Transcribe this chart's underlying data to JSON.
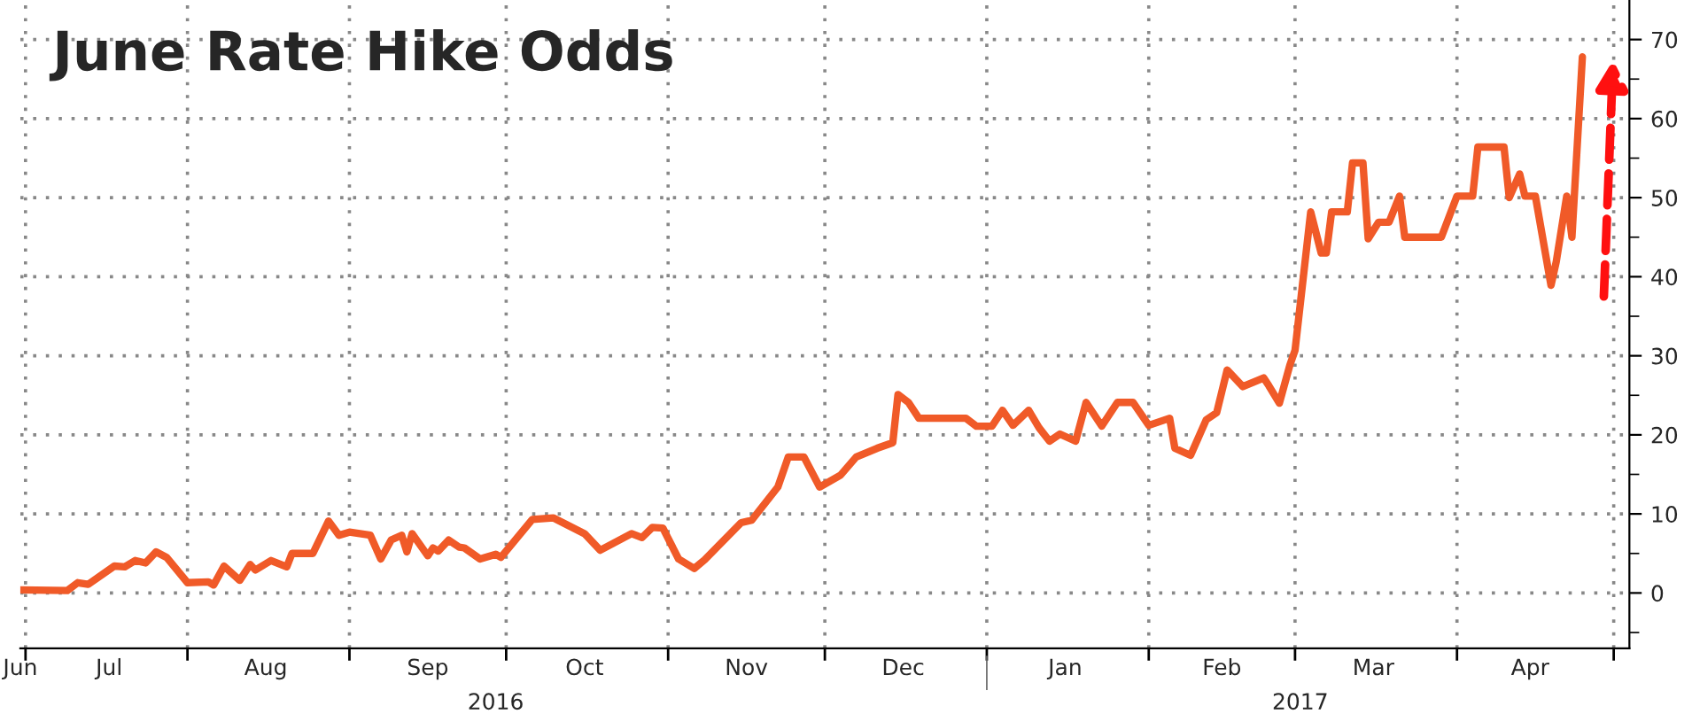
{
  "chart_data": {
    "type": "line",
    "title": "June Rate Hike Odds",
    "x": [
      "2016-06-30",
      "2016-07-09",
      "2016-07-11",
      "2016-07-13",
      "2016-07-18",
      "2016-07-20",
      "2016-07-22",
      "2016-07-24",
      "2016-07-26",
      "2016-07-28",
      "2016-08-01",
      "2016-08-05",
      "2016-08-06",
      "2016-08-08",
      "2016-08-11",
      "2016-08-13",
      "2016-08-14",
      "2016-08-17",
      "2016-08-20",
      "2016-08-21",
      "2016-08-25",
      "2016-08-28",
      "2016-08-30",
      "2016-09-01",
      "2016-09-05",
      "2016-09-07",
      "2016-09-09",
      "2016-09-11",
      "2016-09-12",
      "2016-09-13",
      "2016-09-16",
      "2016-09-17",
      "2016-09-18",
      "2016-09-20",
      "2016-09-22",
      "2016-09-23",
      "2016-09-26",
      "2016-09-29",
      "2016-09-30",
      "2016-10-06",
      "2016-10-10",
      "2016-10-16",
      "2016-10-19",
      "2016-10-25",
      "2016-10-27",
      "2016-10-29",
      "2016-10-31",
      "2016-11-03",
      "2016-11-06",
      "2016-11-08",
      "2016-11-15",
      "2016-11-17",
      "2016-11-22",
      "2016-11-24",
      "2016-11-27",
      "2016-11-30",
      "2016-12-04",
      "2016-12-07",
      "2016-12-11",
      "2016-12-14",
      "2016-12-15",
      "2016-12-17",
      "2016-12-19",
      "2016-12-28",
      "2016-12-30",
      "2017-01-02",
      "2017-01-04",
      "2017-01-06",
      "2017-01-09",
      "2017-01-11",
      "2017-01-13",
      "2017-01-15",
      "2017-01-18",
      "2017-01-20",
      "2017-01-23",
      "2017-01-26",
      "2017-01-29",
      "2017-02-01",
      "2017-02-05",
      "2017-02-06",
      "2017-02-09",
      "2017-02-12",
      "2017-02-14",
      "2017-02-16",
      "2017-02-19",
      "2017-02-23",
      "2017-02-24",
      "2017-02-26",
      "2017-02-28",
      "2017-03-01",
      "2017-03-04",
      "2017-03-06",
      "2017-03-07",
      "2017-03-08",
      "2017-03-11",
      "2017-03-12",
      "2017-03-14",
      "2017-03-15",
      "2017-03-17",
      "2017-03-19",
      "2017-03-21",
      "2017-03-22",
      "2017-03-29",
      "2017-04-01",
      "2017-04-04",
      "2017-04-05",
      "2017-04-10",
      "2017-04-11",
      "2017-04-13",
      "2017-04-14",
      "2017-04-16",
      "2017-04-19",
      "2017-04-20",
      "2017-04-22",
      "2017-04-23",
      "2017-04-25"
    ],
    "series": [
      {
        "color": "#f05a28",
        "values": [
          0.4,
          0.3,
          1.3,
          1.1,
          3.4,
          3.3,
          4.1,
          3.8,
          5.2,
          4.5,
          1.3,
          1.4,
          1.0,
          3.4,
          1.6,
          3.6,
          2.9,
          4.1,
          3.3,
          5.0,
          5.0,
          9.1,
          7.3,
          7.7,
          7.3,
          4.3,
          6.7,
          7.3,
          5.2,
          7.5,
          4.7,
          5.7,
          5.3,
          6.7,
          5.8,
          5.7,
          4.3,
          4.9,
          4.5,
          9.3,
          9.5,
          7.5,
          5.4,
          7.5,
          7.0,
          8.3,
          8.2,
          4.3,
          3.1,
          4.2,
          8.9,
          9.2,
          13.4,
          17.2,
          17.2,
          13.4,
          14.9,
          17.2,
          18.3,
          19.0,
          25.1,
          24.1,
          22.1,
          22.1,
          21.1,
          21.1,
          23.1,
          21.2,
          23.1,
          20.9,
          19.2,
          20.1,
          19.2,
          24.1,
          21.1,
          24.1,
          24.1,
          21.2,
          22.1,
          18.3,
          17.4,
          21.9,
          22.8,
          28.2,
          26.1,
          27.2,
          26.2,
          24.0,
          28.8,
          30.7,
          48.2,
          43.0,
          43.0,
          48.2,
          48.2,
          54.4,
          54.4,
          44.8,
          46.9,
          46.9,
          50.2,
          45.0,
          45.0,
          50.2,
          50.2,
          56.4,
          56.4,
          50.0,
          53.0,
          50.2,
          50.2,
          38.9,
          41.9,
          50.2,
          45.0,
          67.8
        ]
      }
    ],
    "xlim": [
      "2016-06-30",
      "2017-05-04"
    ],
    "xticks": [
      {
        "value": "2016-06-30",
        "label": "Jun"
      },
      {
        "value": "2016-07-01",
        "label": null
      },
      {
        "value": "2016-07-17",
        "label": "Jul"
      },
      {
        "value": "2016-08-01",
        "label": null
      },
      {
        "value": "2016-08-16",
        "label": "Aug"
      },
      {
        "value": "2016-09-01",
        "label": null
      },
      {
        "value": "2016-09-16",
        "label": "Sep"
      },
      {
        "value": "2016-10-01",
        "label": null
      },
      {
        "value": "2016-10-16",
        "label": "Oct"
      },
      {
        "value": "2016-11-01",
        "label": null
      },
      {
        "value": "2016-11-16",
        "label": "Nov"
      },
      {
        "value": "2016-12-01",
        "label": null
      },
      {
        "value": "2016-12-16",
        "label": "Dec"
      },
      {
        "value": "2017-01-01",
        "label": null
      },
      {
        "value": "2017-01-16",
        "label": "Jan"
      },
      {
        "value": "2017-02-01",
        "label": null
      },
      {
        "value": "2017-02-15",
        "label": "Feb"
      },
      {
        "value": "2017-03-01",
        "label": null
      },
      {
        "value": "2017-03-16",
        "label": "Mar"
      },
      {
        "value": "2017-04-01",
        "label": null
      },
      {
        "value": "2017-04-15",
        "label": "Apr"
      },
      {
        "value": "2017-05-01",
        "label": null
      }
    ],
    "x2lim": [
      "2016-06-30",
      "2017-05-04"
    ],
    "x2ticks": [
      {
        "value": "2016-09-29",
        "label": "2016"
      },
      {
        "value": "2017-01-01",
        "label": null
      },
      {
        "value": "2017-03-02",
        "label": "2017"
      }
    ],
    "ylim": [
      -7,
      75
    ],
    "yticks": [
      {
        "value": -5,
        "label": null
      },
      0,
      {
        "value": 5,
        "label": null
      },
      10,
      {
        "value": 15,
        "label": null
      },
      20,
      {
        "value": 25,
        "label": null
      },
      30,
      {
        "value": 35,
        "label": null
      },
      40,
      {
        "value": 45,
        "label": null
      },
      50,
      {
        "value": 55,
        "label": null
      },
      60,
      {
        "value": 65,
        "label": null
      },
      70
    ],
    "grid": true,
    "line_style": "solid",
    "marker": "none"
  }
}
